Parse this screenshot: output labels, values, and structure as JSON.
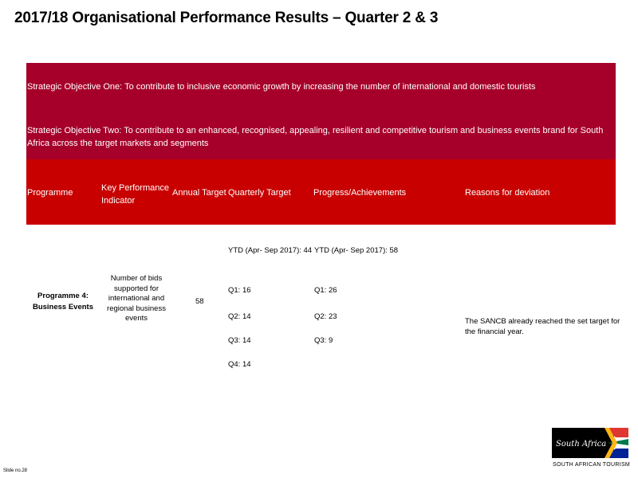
{
  "title": "2017/18 Organisational Performance Results – Quarter 2 & 3",
  "objective_one": "Strategic Objective One: To contribute to inclusive economic growth by increasing the number of international and domestic tourists",
  "objective_two": "Strategic Objective Two: To contribute to an enhanced, recognised, appealing, resilient and competitive tourism and business events brand for South Africa across the target markets and segments",
  "headers": {
    "programme": "Programme",
    "kpi_line1": "Key Performance",
    "kpi_line2": "Indicator",
    "annual_target": "Annual Target",
    "quarterly_target": "Quarterly Target",
    "progress": "Progress/Achievements",
    "reasons": "Reasons for deviation"
  },
  "row": {
    "programme_line1": "Programme 4:",
    "programme_line2": "Business Events",
    "kpi": [
      "Number of bids",
      "supported for",
      "international and",
      "regional business",
      "events"
    ],
    "annual_target": "58",
    "quarterly": {
      "ytd": "YTD (Apr- Sep 2017): 44",
      "q1": "Q1: 16",
      "q2": "Q2: 14",
      "q3": "Q3: 14",
      "q4": "Q4: 14"
    },
    "progress": {
      "ytd": "YTD (Apr- Sep 2017): 58",
      "q1": "Q1: 26",
      "q2": "Q2: 23",
      "q3": "Q3: 9"
    },
    "reason_line1": "The SANCB already reached the set target for",
    "reason_line2": "the financial year."
  },
  "logo": {
    "text": "South Africa",
    "caption": "SOUTH AFRICAN TOURISM"
  },
  "slide_number": "Slide no.28",
  "colors": {
    "band": "#a6002a",
    "header": "#c80000"
  }
}
